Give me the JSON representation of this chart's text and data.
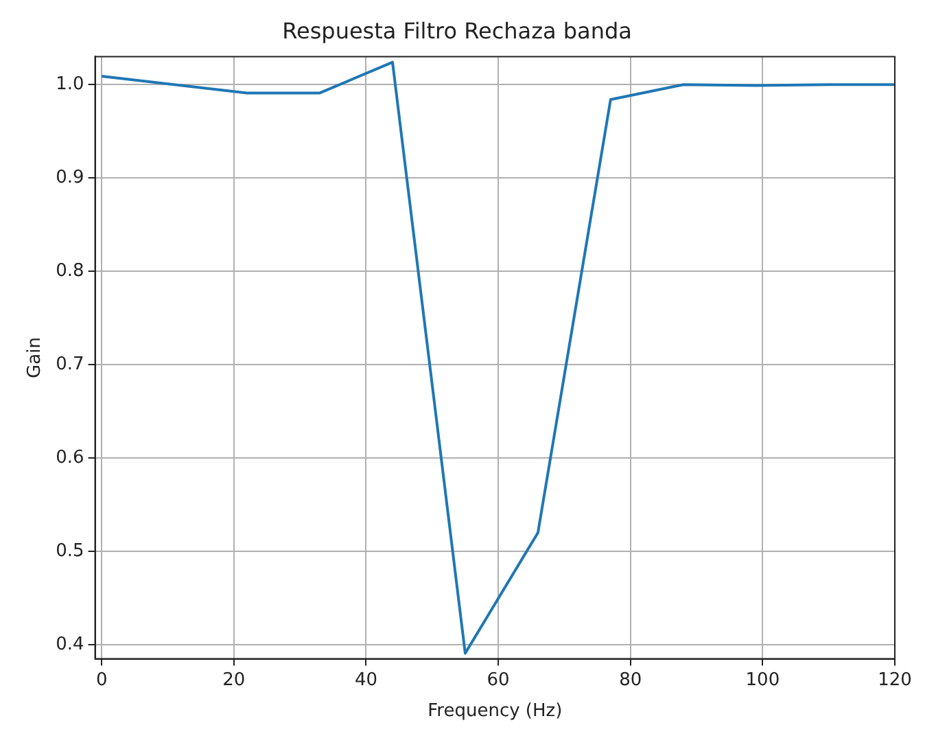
{
  "chart_data": {
    "type": "line",
    "title": "Respuesta Filtro Rechaza banda",
    "xlabel": "Frequency (Hz)",
    "ylabel": "Gain",
    "x": [
      0,
      22,
      33,
      44,
      55,
      66,
      77,
      88,
      99,
      110,
      120
    ],
    "series": [
      {
        "color": "#1f77b4",
        "values": [
          1.009,
          0.991,
          0.991,
          1.024,
          0.391,
          0.52,
          0.984,
          1.0,
          0.999,
          1.0,
          1.0
        ]
      }
    ],
    "xlim": [
      -1,
      120
    ],
    "xticks": [
      0,
      20,
      40,
      60,
      80,
      100,
      120
    ],
    "ylim": [
      0.385,
      1.03
    ],
    "yticks": [
      {
        "value": 0.4,
        "label": "0.4"
      },
      {
        "value": 0.5,
        "label": "0.5"
      },
      {
        "value": 0.6,
        "label": "0.6"
      },
      {
        "value": 0.7,
        "label": "0.7"
      },
      {
        "value": 0.8,
        "label": "0.8"
      },
      {
        "value": 0.9,
        "label": "0.9"
      },
      {
        "value": 1.0,
        "label": "1.0"
      }
    ],
    "grid": true,
    "legend": false,
    "marker": "none",
    "line_style": "solid"
  }
}
